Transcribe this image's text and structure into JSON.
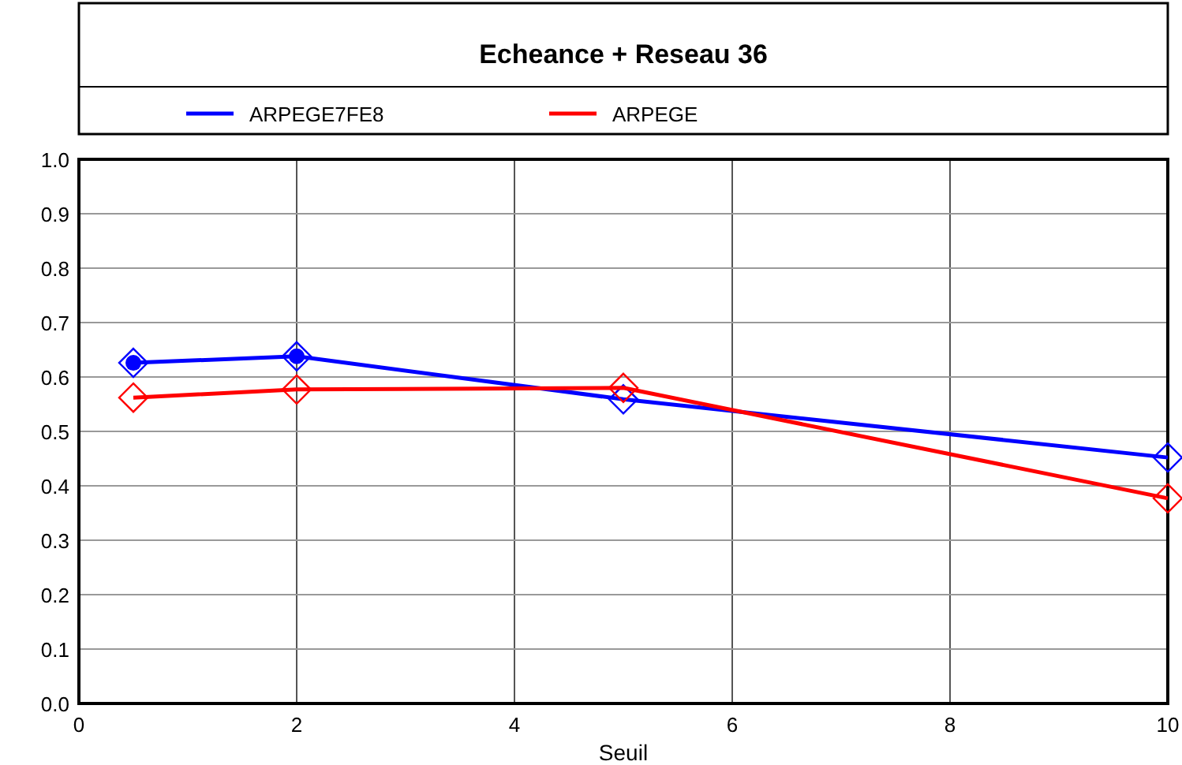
{
  "chart_data": {
    "type": "line",
    "title": "Echeance + Reseau 36",
    "xlabel": "Seuil",
    "x": [
      0.5,
      2,
      5,
      10
    ],
    "series": [
      {
        "type": "scatter",
        "color": "#0000ff",
        "marker": "circle",
        "values": [
          0.626,
          0.638,
          null,
          null
        ]
      },
      {
        "name": "ARPEGE7FE8",
        "color": "#0000ff",
        "values": [
          0.626,
          0.638,
          0.559,
          0.452
        ]
      },
      {
        "name": "ARPEGE",
        "color": "#ff0000",
        "values": [
          0.562,
          0.577,
          0.58,
          0.377
        ]
      }
    ],
    "xlim": [
      0,
      10
    ],
    "xticks": [
      0,
      2,
      4,
      6,
      8,
      10
    ],
    "ylim": [
      0,
      1
    ],
    "yticks": [
      {
        "value": 0,
        "label": "0.0"
      },
      {
        "value": 0.1,
        "label": "0.1"
      },
      {
        "value": 0.2,
        "label": "0.2"
      },
      {
        "value": 0.3,
        "label": "0.3"
      },
      {
        "value": 0.4,
        "label": "0.4"
      },
      {
        "value": 0.5,
        "label": "0.5"
      },
      {
        "value": 0.6,
        "label": "0.6"
      },
      {
        "value": 0.7,
        "label": "0.7"
      },
      {
        "value": 0.8,
        "label": "0.8"
      },
      {
        "value": 0.9,
        "label": "0.9"
      },
      {
        "value": 1,
        "label": "1.0"
      }
    ],
    "grid": true,
    "legend": "top",
    "marker": "diamond",
    "line_style": "solid"
  }
}
